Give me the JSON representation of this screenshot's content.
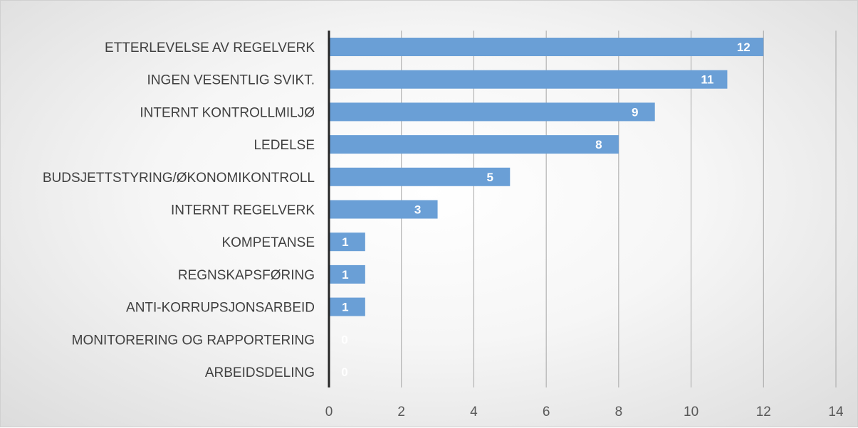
{
  "chart_data": {
    "type": "bar",
    "orientation": "horizontal",
    "title": "",
    "xlabel": "",
    "ylabel": "",
    "categories": [
      "ETTERLEVELSE AV REGELVERK",
      "INGEN VESENTLIG SVIKT.",
      "INTERNT KONTROLLMILJØ",
      "LEDELSE",
      "BUDSJETTSTYRING/ØKONOMIKONTROLL",
      "INTERNT REGELVERK",
      "KOMPETANSE",
      "REGNSKAPSFØRING",
      "ANTI-KORRUPSJONSARBEID",
      "MONITORERING OG RAPPORTERING",
      "ARBEIDSDELING"
    ],
    "values": [
      12,
      11,
      9,
      8,
      5,
      3,
      1,
      1,
      1,
      0,
      0
    ],
    "xlim": [
      0,
      14
    ],
    "x_ticks": [
      "0",
      "2",
      "4",
      "6",
      "8",
      "10",
      "12",
      "14"
    ],
    "grid": true,
    "legend": "none",
    "bar_color": "#6a9fd6",
    "data_label_color": "#ffffff"
  }
}
